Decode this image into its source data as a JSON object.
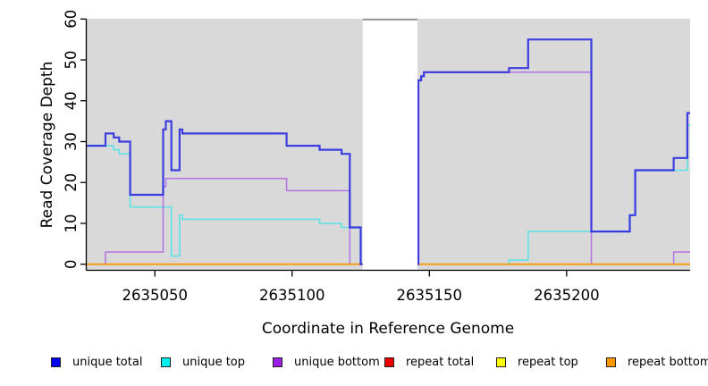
{
  "chart_data": {
    "type": "line",
    "subtype": "step-after",
    "title": "",
    "xlabel": "Coordinate in Reference Genome",
    "ylabel": "Read Coverage Depth",
    "xlim": [
      2635025,
      2635245
    ],
    "ylim": [
      0,
      60
    ],
    "x_ticks": [
      2635050,
      2635100,
      2635150,
      2635200
    ],
    "y_ticks": [
      0,
      10,
      20,
      30,
      40,
      50,
      60
    ],
    "grid": false,
    "panel_bg": "#d9d9d9",
    "mask_region": {
      "note": "white no-data band covering all series",
      "x_start": 2635125.7,
      "x_end": 2635145.7,
      "fill": "#ffffff",
      "top_border_color": "#8d8d8d"
    },
    "draw_order": [
      "repeat total",
      "repeat top",
      "unique top",
      "unique bottom",
      "repeat bottom",
      "unique total"
    ],
    "series": [
      {
        "name": "unique total",
        "color": "#2b2be0",
        "width": 2.2,
        "opacity": 0.9,
        "points": [
          [
            2635025,
            29
          ],
          [
            2635032,
            32
          ],
          [
            2635035,
            31
          ],
          [
            2635037,
            30
          ],
          [
            2635041,
            17
          ],
          [
            2635053,
            33
          ],
          [
            2635054,
            35
          ],
          [
            2635056,
            23
          ],
          [
            2635059,
            33
          ],
          [
            2635060,
            32
          ],
          [
            2635098,
            29
          ],
          [
            2635110,
            28
          ],
          [
            2635118,
            27
          ],
          [
            2635121,
            9
          ],
          [
            2635125,
            0
          ],
          [
            2635146,
            45
          ],
          [
            2635147,
            46
          ],
          [
            2635148,
            47
          ],
          [
            2635179,
            48
          ],
          [
            2635186,
            55
          ],
          [
            2635209,
            8
          ],
          [
            2635223,
            12
          ],
          [
            2635225,
            23
          ],
          [
            2635239,
            26
          ],
          [
            2635244,
            37
          ]
        ]
      },
      {
        "name": "unique top",
        "color": "#49e2ea",
        "width": 1.6,
        "opacity": 0.85,
        "points": [
          [
            2635025,
            29
          ],
          [
            2635035,
            28
          ],
          [
            2635037,
            27
          ],
          [
            2635041,
            14
          ],
          [
            2635056,
            2
          ],
          [
            2635059,
            12
          ],
          [
            2635060,
            11
          ],
          [
            2635110,
            10
          ],
          [
            2635118,
            9
          ],
          [
            2635125,
            0
          ],
          [
            2635179,
            1
          ],
          [
            2635186,
            8
          ],
          [
            2635223,
            12
          ],
          [
            2635225,
            23
          ],
          [
            2635244,
            34
          ]
        ]
      },
      {
        "name": "unique bottom",
        "color": "#ad62e4",
        "width": 1.5,
        "opacity": 0.85,
        "points": [
          [
            2635025,
            0
          ],
          [
            2635032,
            3
          ],
          [
            2635053,
            19
          ],
          [
            2635054,
            21
          ],
          [
            2635098,
            18
          ],
          [
            2635121,
            0
          ],
          [
            2635146,
            45
          ],
          [
            2635147,
            46
          ],
          [
            2635148,
            47
          ],
          [
            2635209,
            0
          ],
          [
            2635239,
            3
          ]
        ]
      },
      {
        "name": "repeat total",
        "color": "#e10000",
        "width": 1.2,
        "opacity": 0.9,
        "points": [
          [
            2635025,
            0
          ]
        ]
      },
      {
        "name": "repeat top",
        "color": "#f2f200",
        "width": 1.2,
        "opacity": 0.9,
        "points": [
          [
            2635025,
            0
          ]
        ]
      },
      {
        "name": "repeat bottom",
        "color": "#ff9800",
        "width": 1.8,
        "opacity": 0.95,
        "points": [
          [
            2635025,
            0
          ]
        ]
      }
    ]
  },
  "legend": {
    "items": [
      {
        "label": "unique total",
        "swatch": "#0000f5"
      },
      {
        "label": "unique top",
        "swatch": "#00f0f0"
      },
      {
        "label": "unique bottom",
        "swatch": "#9c1fe8"
      },
      {
        "label": "repeat total",
        "swatch": "#ee0000"
      },
      {
        "label": "repeat top",
        "swatch": "#ffff00"
      },
      {
        "label": "repeat bottom",
        "swatch": "#ff9800"
      }
    ],
    "item_x": [
      57,
      180,
      305,
      430,
      555,
      678
    ]
  }
}
